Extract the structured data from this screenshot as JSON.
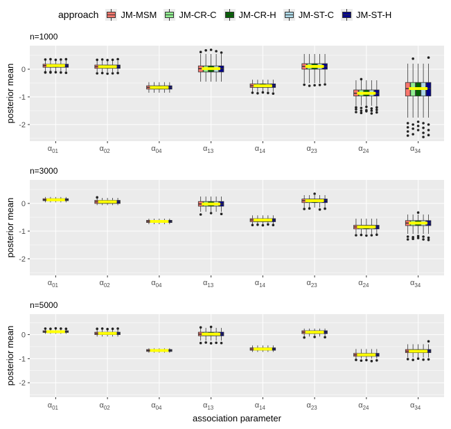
{
  "legend": {
    "title": "approach",
    "items": [
      {
        "label": "JM-MSM",
        "color": "#F8766D"
      },
      {
        "label": "JM-CR-C",
        "color": "#90EE90"
      },
      {
        "label": "JM-CR-H",
        "color": "#006400"
      },
      {
        "label": "JM-ST-C",
        "color": "#ADD8E6"
      },
      {
        "label": "JM-ST-H",
        "color": "#00008B"
      }
    ]
  },
  "colors": {
    "panel_bg": "#EBEBEB",
    "grid": "#FFFFFF",
    "median_overlay": "#FFFF00",
    "box_outline": "#333333"
  },
  "chart_data": {
    "type": "boxplot",
    "xlabel": "association parameter",
    "ylabel": "posterior mean",
    "ylim": [
      -2.6,
      0.85
    ],
    "yticks": [
      0,
      -1,
      -2
    ],
    "categories": [
      {
        "base": "α",
        "sub": "01"
      },
      {
        "base": "α",
        "sub": "02"
      },
      {
        "base": "α",
        "sub": "04"
      },
      {
        "base": "α",
        "sub": "13"
      },
      {
        "base": "α",
        "sub": "14"
      },
      {
        "base": "α",
        "sub": "23"
      },
      {
        "base": "α",
        "sub": "24"
      },
      {
        "base": "α",
        "sub": "34"
      }
    ],
    "series": [
      "JM-MSM",
      "JM-CR-C",
      "JM-CR-H",
      "JM-ST-C",
      "JM-ST-H"
    ],
    "panels": [
      {
        "title": "n=1000",
        "groups": [
          {
            "median": 0.13,
            "q1": 0.07,
            "q3": 0.18,
            "whisker_low": -0.08,
            "whisker_high": 0.33,
            "box_halfwidth": 0.2,
            "outliers": [
              [
                -0.12,
                -0.11,
                0.35
              ],
              [
                -0.1,
                -0.12,
                0.36
              ],
              [
                -0.11,
                0.34
              ],
              [
                -0.12,
                0.35
              ],
              [
                -0.13,
                0.36
              ]
            ]
          },
          {
            "median": 0.09,
            "q1": 0.03,
            "q3": 0.15,
            "whisker_low": -0.1,
            "whisker_high": 0.3,
            "box_halfwidth": 0.2,
            "outliers": [
              [
                -0.15,
                0.34
              ],
              [
                -0.14,
                0.35
              ],
              [
                -0.16,
                0.33
              ],
              [
                -0.15,
                0.34
              ],
              [
                -0.14,
                0.36
              ]
            ]
          },
          {
            "median": -0.66,
            "q1": -0.72,
            "q3": -0.6,
            "whisker_low": -0.85,
            "whisker_high": -0.47,
            "box_halfwidth": 0.15,
            "outliers": [
              [],
              [],
              [],
              [],
              []
            ]
          },
          {
            "median": 0.02,
            "q1": -0.1,
            "q3": 0.12,
            "whisker_low": -0.45,
            "whisker_high": 0.55,
            "box_halfwidth": 0.24,
            "outliers": [
              [
                0.62
              ],
              [
                0.68
              ],
              [
                0.7
              ],
              [
                0.65
              ],
              [
                0.6
              ]
            ]
          },
          {
            "median": -0.6,
            "q1": -0.66,
            "q3": -0.53,
            "whisker_low": -0.82,
            "whisker_high": -0.38,
            "box_halfwidth": 0.2,
            "outliers": [
              [
                -0.85
              ],
              [
                -0.87
              ],
              [
                -0.84
              ],
              [
                -0.86
              ],
              [
                -0.88
              ]
            ]
          },
          {
            "median": 0.1,
            "q1": 0.0,
            "q3": 0.2,
            "whisker_low": -0.5,
            "whisker_high": 0.55,
            "box_halfwidth": 0.22,
            "outliers": [
              [
                -0.56
              ],
              [
                -0.6
              ],
              [
                -0.58
              ],
              [
                -0.57
              ],
              [
                -0.55
              ]
            ]
          },
          {
            "median": -0.87,
            "q1": -0.97,
            "q3": -0.75,
            "whisker_low": -1.32,
            "whisker_high": -0.4,
            "box_halfwidth": 0.22,
            "outliers": [
              [
                -1.38,
                -1.45,
                -1.55
              ],
              [
                -1.4,
                -1.5,
                -1.58,
                -0.36
              ],
              [
                -1.36,
                -1.48,
                -1.52
              ],
              [
                -1.42,
                -1.5,
                -1.6
              ],
              [
                -1.38,
                -1.47,
                -1.56
              ]
            ]
          },
          {
            "median": -0.7,
            "q1": -0.97,
            "q3": -0.48,
            "whisker_low": -1.75,
            "whisker_high": 0.2,
            "box_halfwidth": 0.24,
            "outliers": [
              [
                -1.95,
                -2.1,
                -2.25,
                -2.4
              ],
              [
                -2.0,
                -2.15,
                -2.35,
                0.38
              ],
              [
                -1.9,
                -2.05,
                -2.2
              ],
              [
                -1.95,
                -2.12,
                -2.3,
                -2.45
              ],
              [
                -2.0,
                -2.2,
                -2.38,
                0.42
              ]
            ]
          }
        ]
      },
      {
        "title": "n=3000",
        "groups": [
          {
            "median": 0.13,
            "q1": 0.1,
            "q3": 0.17,
            "whisker_low": 0.04,
            "whisker_high": 0.23,
            "box_halfwidth": 0.16,
            "outliers": [
              [],
              [],
              [],
              [],
              []
            ]
          },
          {
            "median": 0.06,
            "q1": 0.0,
            "q3": 0.11,
            "whisker_low": -0.06,
            "whisker_high": 0.2,
            "box_halfwidth": 0.2,
            "outliers": [
              [
                0.22
              ],
              [],
              [],
              [],
              []
            ]
          },
          {
            "median": -0.65,
            "q1": -0.69,
            "q3": -0.61,
            "whisker_low": -0.75,
            "whisker_high": -0.55,
            "box_halfwidth": 0.15,
            "outliers": [
              [],
              [],
              [],
              [],
              []
            ]
          },
          {
            "median": -0.02,
            "q1": -0.1,
            "q3": 0.07,
            "whisker_low": -0.3,
            "whisker_high": 0.25,
            "box_halfwidth": 0.24,
            "outliers": [
              [
                -0.4
              ],
              [],
              [
                -0.35
              ],
              [],
              [
                -0.38
              ]
            ]
          },
          {
            "median": -0.6,
            "q1": -0.66,
            "q3": -0.55,
            "whisker_low": -0.75,
            "whisker_high": -0.43,
            "box_halfwidth": 0.2,
            "outliers": [
              [
                -0.78
              ],
              [
                -0.77
              ],
              [
                -0.79
              ],
              [
                -0.76
              ],
              [
                -0.78
              ]
            ]
          },
          {
            "median": 0.1,
            "q1": 0.03,
            "q3": 0.16,
            "whisker_low": -0.15,
            "whisker_high": 0.3,
            "box_halfwidth": 0.22,
            "outliers": [
              [
                -0.2
              ],
              [
                -0.18
              ],
              [
                0.35
              ],
              [
                -0.22
              ],
              [
                -0.19
              ]
            ]
          },
          {
            "median": -0.85,
            "q1": -0.92,
            "q3": -0.79,
            "whisker_low": -1.1,
            "whisker_high": -0.55,
            "box_halfwidth": 0.22,
            "outliers": [
              [
                -1.15
              ],
              [
                -1.14
              ],
              [
                -1.16
              ],
              [
                -1.15
              ],
              [
                -1.13
              ]
            ]
          },
          {
            "median": -0.71,
            "q1": -0.8,
            "q3": -0.62,
            "whisker_low": -1.1,
            "whisker_high": -0.4,
            "box_halfwidth": 0.22,
            "outliers": [
              [
                -1.2,
                -1.3
              ],
              [
                -1.22,
                -1.28
              ],
              [
                -1.18,
                -1.25,
                -0.33
              ],
              [
                -1.2,
                -1.3
              ],
              [
                -1.24,
                -1.32
              ]
            ]
          }
        ]
      },
      {
        "title": "n=5000",
        "groups": [
          {
            "median": 0.12,
            "q1": 0.09,
            "q3": 0.16,
            "whisker_low": 0.03,
            "whisker_high": 0.22,
            "box_halfwidth": 0.16,
            "outliers": [
              [
                0.25
              ],
              [
                0.24
              ],
              [
                0.26
              ],
              [
                0.25
              ],
              [
                0.24
              ]
            ]
          },
          {
            "median": 0.05,
            "q1": 0.0,
            "q3": 0.1,
            "whisker_low": -0.08,
            "whisker_high": 0.2,
            "box_halfwidth": 0.2,
            "outliers": [
              [
                0.24
              ],
              [
                0.25
              ],
              [
                0.23
              ],
              [
                0.24
              ],
              [
                0.25
              ]
            ]
          },
          {
            "median": -0.66,
            "q1": -0.7,
            "q3": -0.62,
            "whisker_low": -0.75,
            "whisker_high": -0.57,
            "box_halfwidth": 0.15,
            "outliers": [
              [],
              [],
              [],
              [],
              []
            ]
          },
          {
            "median": 0.02,
            "q1": -0.05,
            "q3": 0.1,
            "whisker_low": -0.25,
            "whisker_high": 0.28,
            "box_halfwidth": 0.2,
            "outliers": [
              [
                -0.35,
                0.3
              ],
              [
                -0.33
              ],
              [
                -0.36,
                0.32
              ],
              [
                -0.34
              ],
              [
                -0.35
              ]
            ]
          },
          {
            "median": -0.6,
            "q1": -0.65,
            "q3": -0.55,
            "whisker_low": -0.72,
            "whisker_high": -0.45,
            "box_halfwidth": 0.2,
            "outliers": [
              [],
              [],
              [],
              [],
              []
            ]
          },
          {
            "median": 0.1,
            "q1": 0.04,
            "q3": 0.16,
            "whisker_low": -0.08,
            "whisker_high": 0.25,
            "box_halfwidth": 0.2,
            "outliers": [
              [
                -0.12
              ],
              [],
              [
                -0.1
              ],
              [],
              [
                -0.11
              ]
            ]
          },
          {
            "median": -0.84,
            "q1": -0.9,
            "q3": -0.78,
            "whisker_low": -1.0,
            "whisker_high": -0.6,
            "box_halfwidth": 0.22,
            "outliers": [
              [
                -1.05
              ],
              [
                -1.08
              ],
              [
                -1.06
              ],
              [
                -1.1
              ],
              [
                -1.07
              ]
            ]
          },
          {
            "median": -0.69,
            "q1": -0.75,
            "q3": -0.62,
            "whisker_low": -0.95,
            "whisker_high": -0.4,
            "box_halfwidth": 0.22,
            "outliers": [
              [
                -1.02
              ],
              [
                -1.05
              ],
              [
                -1.0
              ],
              [
                -1.04
              ],
              [
                -1.03,
                -0.28
              ]
            ]
          }
        ]
      }
    ]
  }
}
